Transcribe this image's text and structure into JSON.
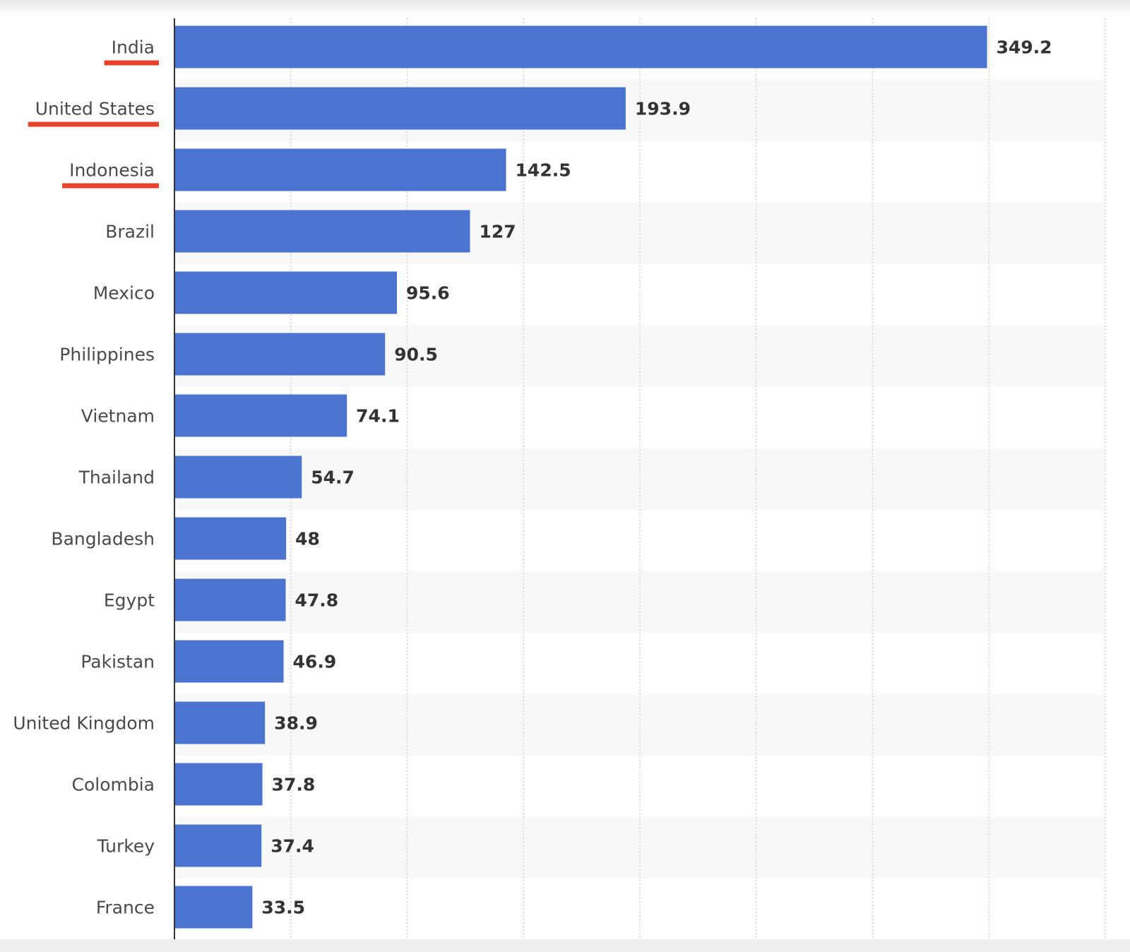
{
  "chart_data": {
    "type": "bar",
    "orientation": "horizontal",
    "categories": [
      "India",
      "United States",
      "Indonesia",
      "Brazil",
      "Mexico",
      "Philippines",
      "Vietnam",
      "Thailand",
      "Bangladesh",
      "Egypt",
      "Pakistan",
      "United Kingdom",
      "Colombia",
      "Turkey",
      "France"
    ],
    "values": [
      349.2,
      193.9,
      142.5,
      127,
      95.6,
      90.5,
      74.1,
      54.7,
      48,
      47.8,
      46.9,
      38.9,
      37.8,
      37.4,
      33.5
    ],
    "value_labels": [
      "349.2",
      "193.9",
      "142.5",
      "127",
      "95.6",
      "90.5",
      "74.1",
      "54.7",
      "48",
      "47.8",
      "46.9",
      "38.9",
      "37.8",
      "37.4",
      "33.5"
    ],
    "underlined_categories": [
      "India",
      "United States",
      "Indonesia"
    ],
    "xlim": [
      0,
      400
    ],
    "grid": true,
    "bar_color": "#4a74d0",
    "underline_color": "#e8412c",
    "band_color": "#f8f8f8"
  }
}
